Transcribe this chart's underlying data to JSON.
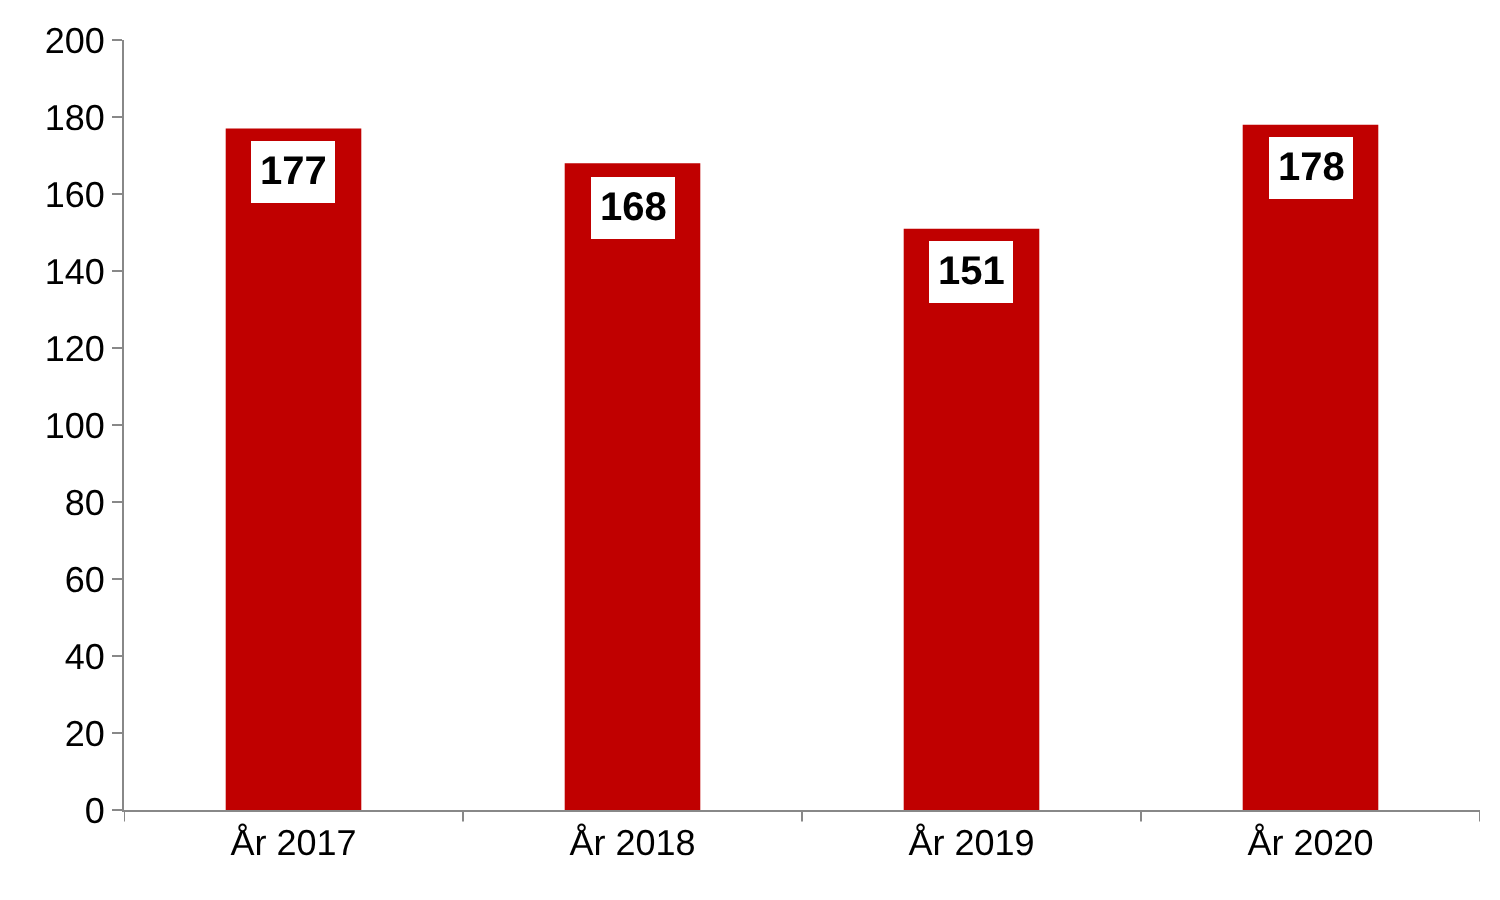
{
  "chart_data": {
    "type": "bar",
    "categories": [
      "År 2017",
      "År 2018",
      "År 2019",
      "År 2020"
    ],
    "values": [
      177,
      168,
      151,
      178
    ],
    "color": "#c00000",
    "ylim": [
      0,
      200
    ],
    "yticks": [
      0,
      20,
      40,
      60,
      80,
      100,
      120,
      140,
      160,
      180,
      200
    ],
    "data_labels": true
  }
}
